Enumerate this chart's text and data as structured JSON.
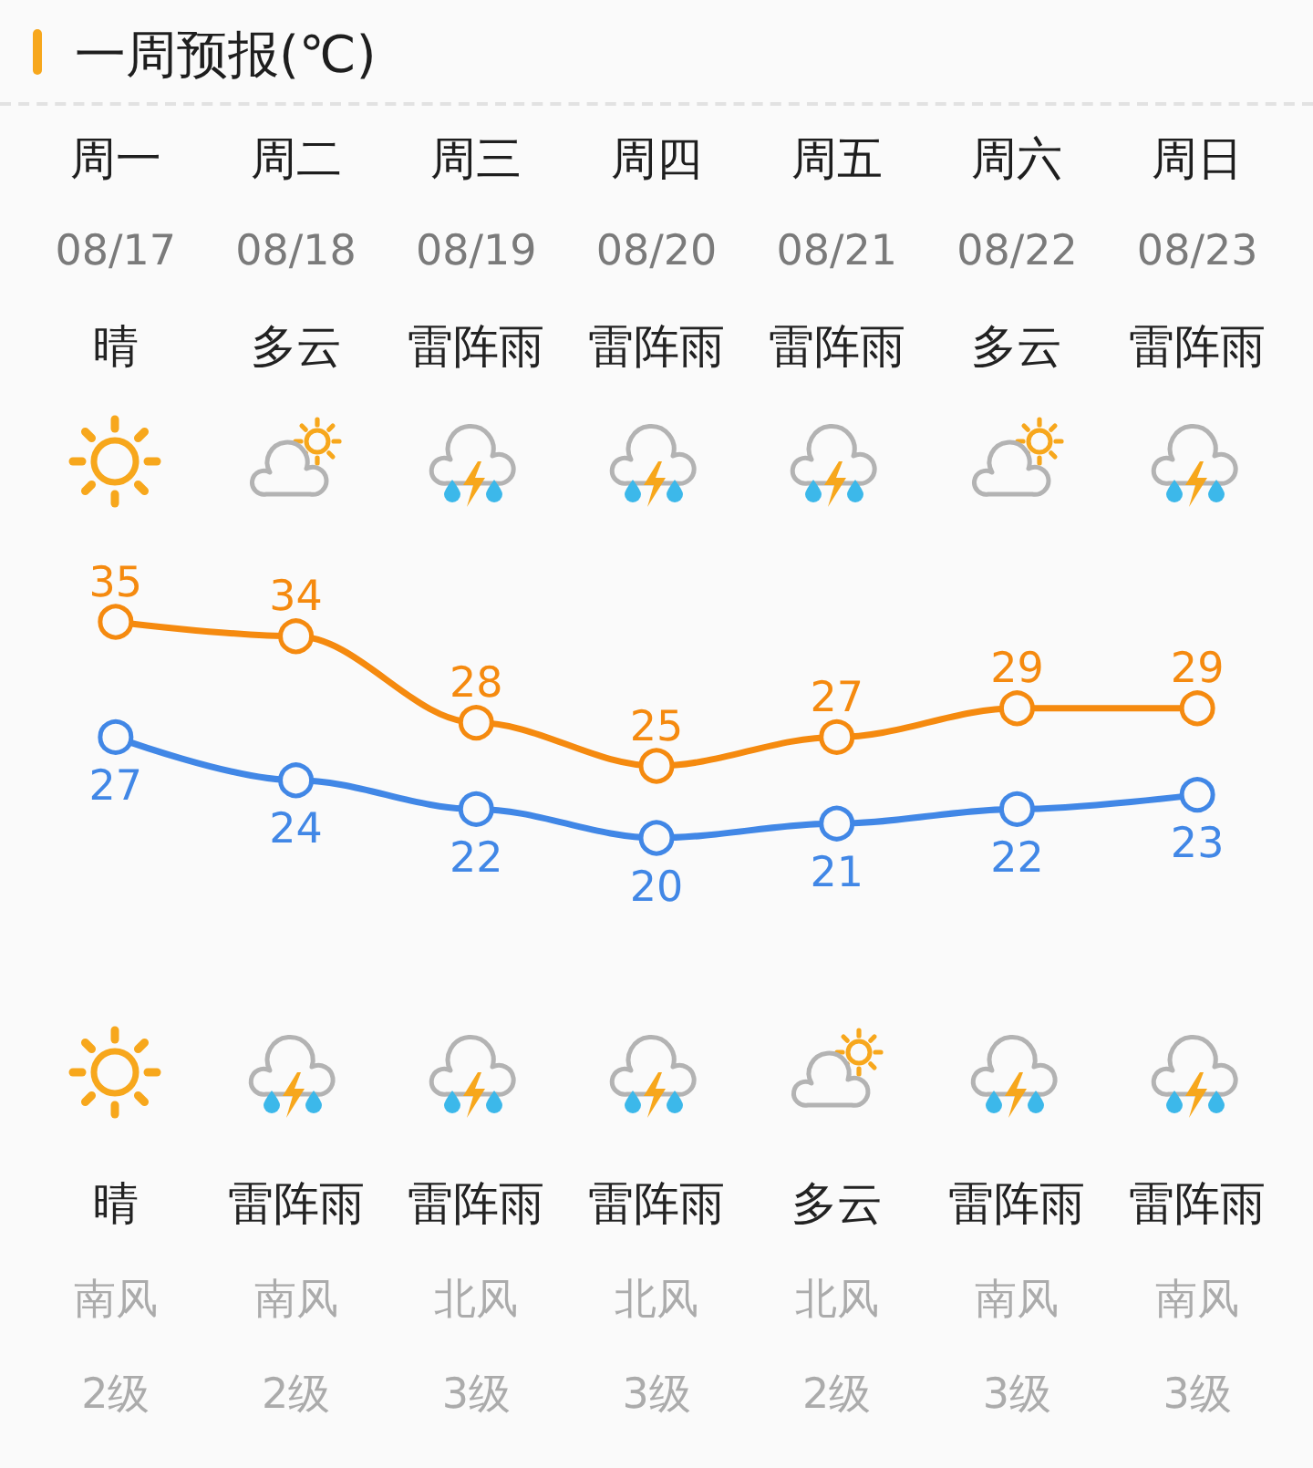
{
  "chart_data": {
    "type": "line",
    "title": "一周预报(℃)",
    "categories": [
      "周一",
      "周二",
      "周三",
      "周四",
      "周五",
      "周六",
      "周日"
    ],
    "series": [
      {
        "color": "#f58a0f",
        "values": [
          35,
          34,
          28,
          25,
          27,
          29,
          29
        ]
      },
      {
        "color": "#4187e6",
        "values": [
          27,
          24,
          22,
          20,
          21,
          22,
          23
        ]
      }
    ],
    "data_labels": true,
    "marker": "circle",
    "line_style": "solid",
    "annotations": [
      "08/17",
      "08/18",
      "08/19",
      "08/20",
      "08/21",
      "08/22",
      "08/23",
      "晴",
      "多云",
      "雷阵雨",
      "雷阵雨",
      "雷阵雨",
      "多云",
      "雷阵雨",
      "晴",
      "雷阵雨",
      "雷阵雨",
      "雷阵雨",
      "多云",
      "雷阵雨",
      "雷阵雨",
      "南风",
      "南风",
      "北风",
      "北风",
      "北风",
      "南风",
      "南风",
      "2级",
      "2级",
      "3级",
      "3级",
      "2级",
      "3级",
      "3级"
    ]
  }
}
